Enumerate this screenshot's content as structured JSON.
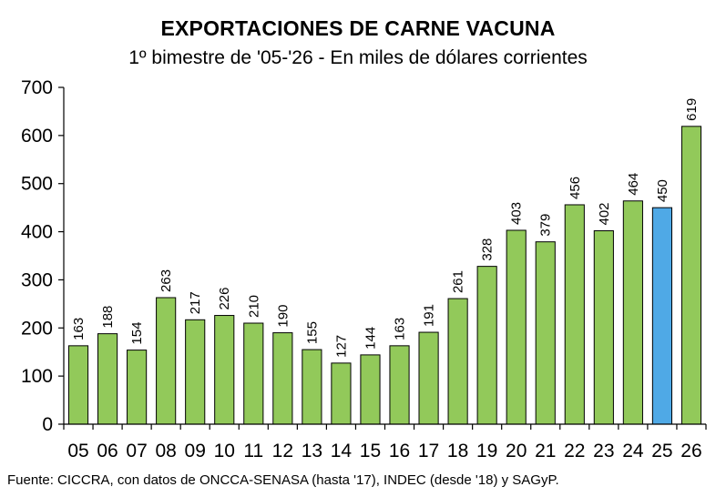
{
  "chart_data": {
    "type": "bar",
    "title": "EXPORTACIONES DE CARNE VACUNA",
    "subtitle": "1º bimestre de '05-'26 - En miles de dólares corrientes",
    "categories": [
      "05",
      "06",
      "07",
      "08",
      "09",
      "10",
      "11",
      "12",
      "13",
      "14",
      "15",
      "16",
      "17",
      "18",
      "19",
      "20",
      "21",
      "22",
      "23",
      "24",
      "25",
      "26"
    ],
    "values": [
      163,
      188,
      154,
      263,
      217,
      226,
      210,
      190,
      155,
      127,
      144,
      163,
      191,
      261,
      328,
      403,
      379,
      456,
      402,
      464,
      450,
      619
    ],
    "highlight_category": "25",
    "ylim": [
      0,
      700
    ],
    "yticks": [
      0,
      100,
      200,
      300,
      400,
      500,
      600,
      700
    ],
    "grid": false,
    "legend": "none",
    "data_labels": "vertical, above bars",
    "colors": {
      "bar": "#92C95A",
      "highlight": "#4FA9E6",
      "outline": "#000000"
    }
  },
  "footer": {
    "source": "Fuente: CICCRA, con datos de ONCCA-SENASA (hasta '17), INDEC (desde '18) y SAGyP."
  }
}
